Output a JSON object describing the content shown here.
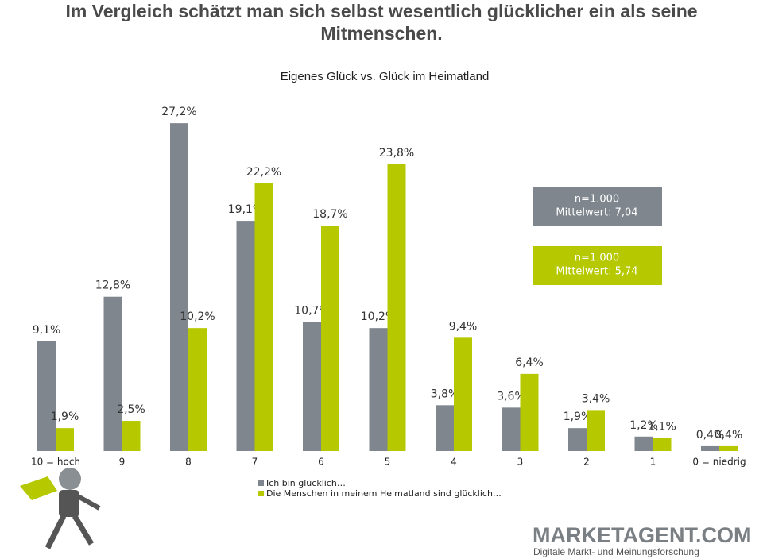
{
  "chart_data": {
    "type": "bar",
    "title": "Im Vergleich schätzt man sich selbst wesentlich glücklicher ein als seine Mitmenschen.",
    "subtitle": "Eigenes Glück vs. Glück im Heimatland",
    "categories": [
      "10 = hoch",
      "9",
      "8",
      "7",
      "6",
      "5",
      "4",
      "3",
      "2",
      "1",
      "0 = niedrig"
    ],
    "series": [
      {
        "name": "Ich bin glücklich…",
        "color": "#7f868d",
        "values": [
          9.1,
          12.8,
          27.2,
          19.1,
          10.7,
          10.2,
          3.8,
          3.6,
          1.9,
          1.2,
          0.4
        ],
        "value_labels": [
          "9,1%",
          "12,8%",
          "27,2%",
          "19,1%",
          "10,7%",
          "10,2%",
          "3,8%",
          "3,6%",
          "1,9%",
          "1,2%",
          "0,4%"
        ]
      },
      {
        "name": "Die Menschen in meinem Heimatland sind glücklich…",
        "color": "#b5c800",
        "values": [
          1.9,
          2.5,
          10.2,
          22.2,
          18.7,
          23.8,
          9.4,
          6.4,
          3.4,
          1.1,
          0.4
        ],
        "value_labels": [
          "1,9%",
          "2,5%",
          "10,2%",
          "22,2%",
          "18,7%",
          "23,8%",
          "9,4%",
          "6,4%",
          "3,4%",
          "1,1%",
          "0,4%"
        ]
      }
    ],
    "ylim": [
      0,
      28
    ],
    "annotations": [
      {
        "lines": [
          "n=1.000",
          "Mittelwert: 7,04"
        ],
        "color": "#7f868d"
      },
      {
        "lines": [
          "n=1.000",
          "Mittelwert: 5,74"
        ],
        "color": "#b5c800"
      }
    ]
  },
  "logo": {
    "name": "MARKETAGENT.COM",
    "tagline": "Digitale Markt- und Meinungsforschung"
  }
}
